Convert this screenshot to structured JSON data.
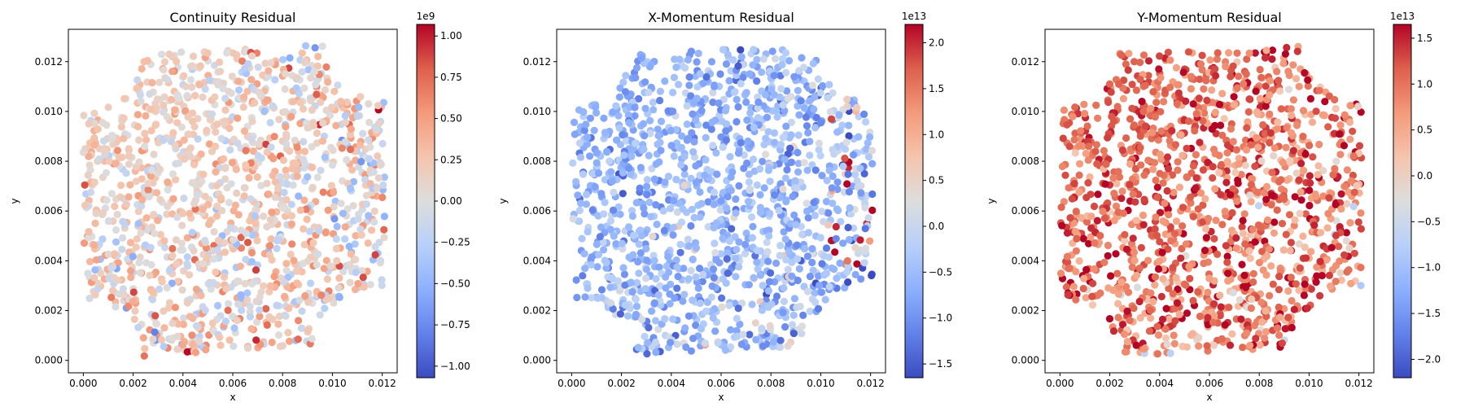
{
  "chart_data": [
    {
      "type": "scatter",
      "title": "Continuity Residual",
      "xlabel": "x",
      "ylabel": "y",
      "xlim": [
        -0.0006,
        0.0126
      ],
      "ylim": [
        -0.0005,
        0.0133
      ],
      "xticks": [
        "0.000",
        "0.002",
        "0.004",
        "0.006",
        "0.008",
        "0.010",
        "0.012"
      ],
      "xtick_values": [
        0,
        0.002,
        0.004,
        0.006,
        0.008,
        0.01,
        0.012
      ],
      "yticks": [
        "0.000",
        "0.002",
        "0.004",
        "0.006",
        "0.008",
        "0.010",
        "0.012"
      ],
      "ytick_values": [
        0,
        0.002,
        0.004,
        0.006,
        0.008,
        0.01,
        0.012
      ],
      "colormap": "coolwarm",
      "colorbar": {
        "range": [
          -1.07,
          1.07
        ],
        "ticks": [
          "−1.00",
          "−0.75",
          "−0.50",
          "−0.25",
          "0.00",
          "0.25",
          "0.50",
          "0.75",
          "1.00"
        ],
        "tick_values": [
          -1.0,
          -0.75,
          -0.5,
          -0.25,
          0.0,
          0.25,
          0.5,
          0.75,
          1.0
        ],
        "scale_label": "1e9"
      },
      "pattern": {
        "seed": 11,
        "bias": 0.08,
        "spread": 0.35
      }
    },
    {
      "type": "scatter",
      "title": "X-Momentum Residual",
      "xlabel": "x",
      "ylabel": "y",
      "xlim": [
        -0.0006,
        0.0126
      ],
      "ylim": [
        -0.0005,
        0.0133
      ],
      "xticks": [
        "0.000",
        "0.002",
        "0.004",
        "0.006",
        "0.008",
        "0.010",
        "0.012"
      ],
      "xtick_values": [
        0,
        0.002,
        0.004,
        0.006,
        0.008,
        0.01,
        0.012
      ],
      "yticks": [
        "0.000",
        "0.002",
        "0.004",
        "0.006",
        "0.008",
        "0.010",
        "0.012"
      ],
      "ytick_values": [
        0,
        0.002,
        0.004,
        0.006,
        0.008,
        0.01,
        0.012
      ],
      "colormap": "coolwarm",
      "colorbar": {
        "range": [
          -1.65,
          2.2
        ],
        "ticks": [
          "−1.5",
          "−1.0",
          "−0.5",
          "0.0",
          "0.5",
          "1.0",
          "1.5",
          "2.0"
        ],
        "tick_values": [
          -1.5,
          -1.0,
          -0.5,
          0.0,
          0.5,
          1.0,
          1.5,
          2.0
        ],
        "scale_label": "1e13"
      },
      "pattern": {
        "seed": 23,
        "bias": -0.28,
        "spread": 0.3
      }
    },
    {
      "type": "scatter",
      "title": "Y-Momentum Residual",
      "xlabel": "x",
      "ylabel": "y",
      "xlim": [
        -0.0006,
        0.0126
      ],
      "ylim": [
        -0.0005,
        0.0133
      ],
      "xticks": [
        "0.000",
        "0.002",
        "0.004",
        "0.006",
        "0.008",
        "0.010",
        "0.012"
      ],
      "xtick_values": [
        0,
        0.002,
        0.004,
        0.006,
        0.008,
        0.01,
        0.012
      ],
      "yticks": [
        "0.000",
        "0.002",
        "0.004",
        "0.006",
        "0.008",
        "0.010",
        "0.012"
      ],
      "ytick_values": [
        0,
        0.002,
        0.004,
        0.006,
        0.008,
        0.01,
        0.012
      ],
      "colormap": "coolwarm",
      "colorbar": {
        "range": [
          -2.2,
          1.65
        ],
        "ticks": [
          "−2.0",
          "−1.5",
          "−1.0",
          "−0.5",
          "0.0",
          "0.5",
          "1.0",
          "1.5"
        ],
        "tick_values": [
          -2.0,
          -1.5,
          -1.0,
          -0.5,
          0.0,
          0.5,
          1.0,
          1.5
        ],
        "scale_label": "1e13"
      },
      "pattern": {
        "seed": 37,
        "bias": 0.42,
        "spread": 0.35
      }
    }
  ]
}
